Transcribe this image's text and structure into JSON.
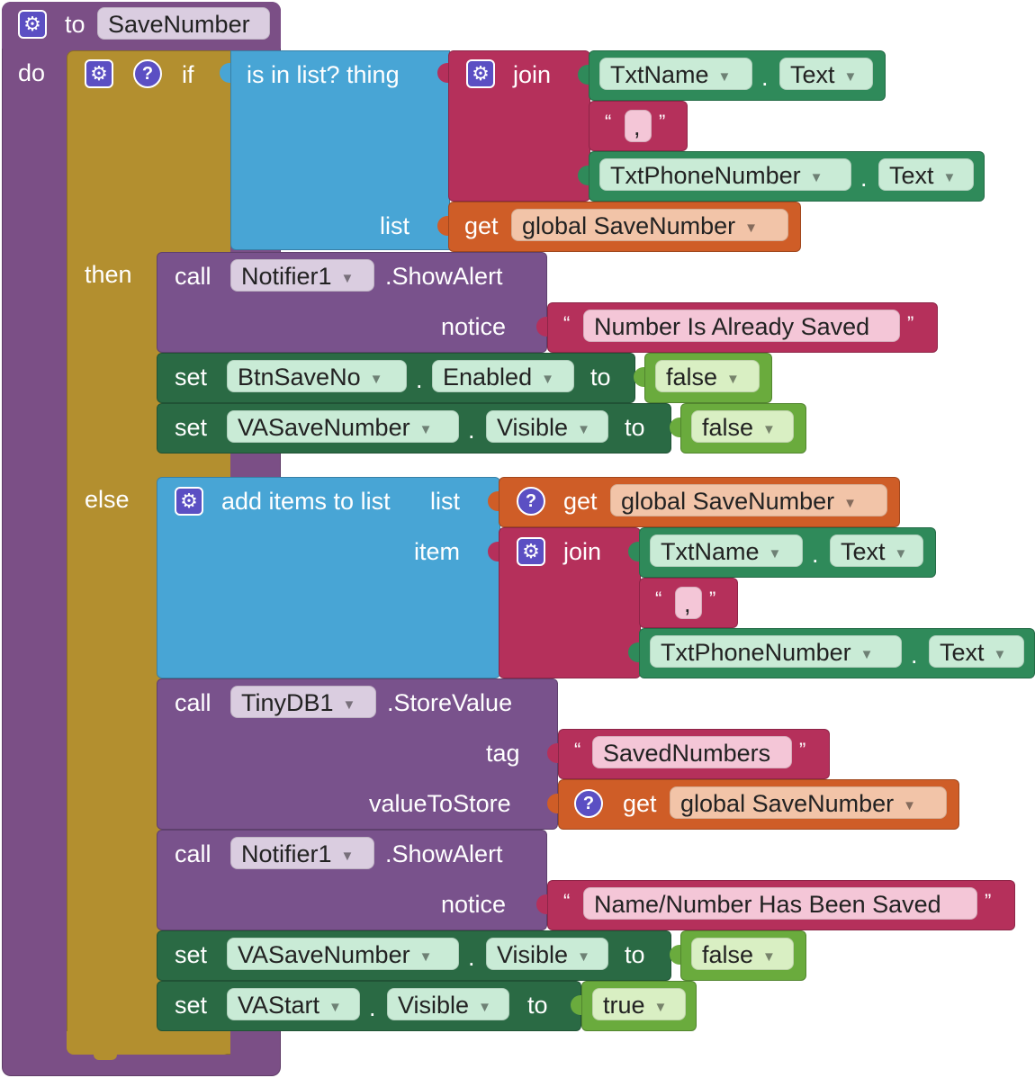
{
  "procedure": {
    "to_label": "to",
    "name": "SaveNumber",
    "do_label": "do"
  },
  "if_block": {
    "if_label": "if",
    "then_label": "then",
    "else_label": "else"
  },
  "condition": {
    "label": "is in list? thing",
    "list_label": "list",
    "join_label": "join",
    "txtname": "TxtName",
    "txtname_prop": "Text",
    "separator": ",",
    "txtphone": "TxtPhoneNumber",
    "txtphone_prop": "Text",
    "dot": ".",
    "quote_open": "“",
    "quote_close": "”",
    "get_label": "get",
    "global_var": "global SaveNumber"
  },
  "then_branch": {
    "call_label": "call",
    "notifier": "Notifier1",
    "method": ".ShowAlert",
    "notice_label": "notice",
    "notice_text": "Number Is Already Saved",
    "set1": {
      "set_label": "set",
      "component": "BtnSaveNo",
      "property": "Enabled",
      "to_label": "to",
      "value": "false"
    },
    "set2": {
      "set_label": "set",
      "component": "VASaveNumber",
      "property": "Visible",
      "to_label": "to",
      "value": "false"
    }
  },
  "else_branch": {
    "add_label": "add items to list",
    "list_label": "list",
    "item_label": "item",
    "get_label": "get",
    "global_var": "global SaveNumber",
    "join_label": "join",
    "txtname": "TxtName",
    "txtname_prop": "Text",
    "separator": ",",
    "txtphone": "TxtPhoneNumber",
    "txtphone_prop": "Text",
    "store": {
      "call_label": "call",
      "component": "TinyDB1",
      "method": ".StoreValue",
      "tag_label": "tag",
      "tag_value": "SavedNumbers",
      "value_label": "valueToStore",
      "get_label": "get",
      "global_var": "global SaveNumber"
    },
    "alert": {
      "call_label": "call",
      "notifier": "Notifier1",
      "method": ".ShowAlert",
      "notice_label": "notice",
      "notice_text": "Name/Number Has Been Saved"
    },
    "set1": {
      "set_label": "set",
      "component": "VASaveNumber",
      "property": "Visible",
      "to_label": "to",
      "value": "false"
    },
    "set2": {
      "set_label": "set",
      "component": "VAStart",
      "property": "Visible",
      "to_label": "to",
      "value": "true"
    }
  },
  "icons": {
    "gear": "⚙",
    "question": "?",
    "dropdown_arrow": "▼"
  },
  "colors": {
    "procedure": "#7b4f86",
    "control": "#b38f2f",
    "lists": "#48a5d5",
    "text": "#b5305b",
    "component": "#2f8a5a",
    "variable": "#cf5d27",
    "logic": "#6aab3d"
  }
}
